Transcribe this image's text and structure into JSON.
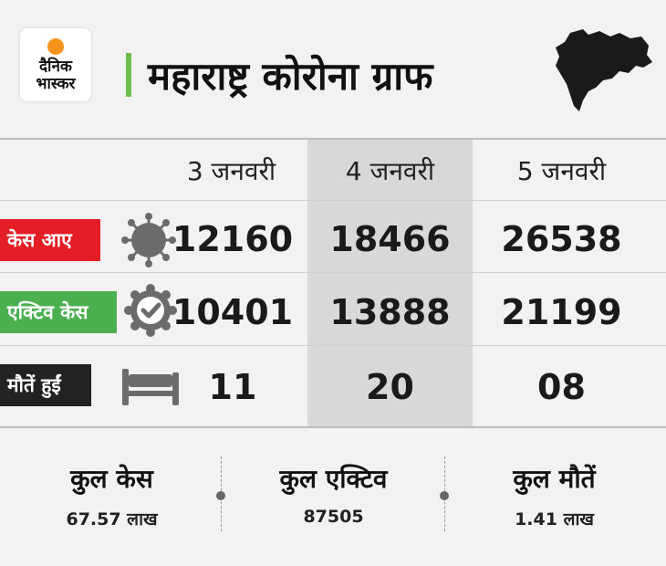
{
  "brand": {
    "line1": "दैनिक",
    "line2": "भास्कर",
    "accent": "#f7941d"
  },
  "title": "महाराष्ट्र कोरोना ग्राफ",
  "columns": [
    "3 जनवरी",
    "4 जनवरी",
    "5 जनवरी"
  ],
  "rows": [
    {
      "label": "केस आए",
      "color": "#e31e24",
      "icon": "virus-icon",
      "values": [
        "12160",
        "18466",
        "26538"
      ]
    },
    {
      "label": "एक्टिव केस",
      "color": "#4caf50",
      "icon": "check-badge-icon",
      "values": [
        "10401",
        "13888",
        "21199"
      ]
    },
    {
      "label": "मौतें हुईं",
      "color": "#222222",
      "icon": "bed-icon",
      "values": [
        "11",
        "20",
        "08"
      ]
    }
  ],
  "totals": [
    {
      "label": "कुल केस",
      "value": "67.57 लाख"
    },
    {
      "label": "कुल एक्टिव",
      "value": "87505"
    },
    {
      "label": "कुल मौतें",
      "value": "1.41 लाख"
    }
  ],
  "colors": {
    "title_accent": "#6dbf4b",
    "highlight": "#d8d8d8",
    "icon_gray": "#6b6b6b"
  }
}
